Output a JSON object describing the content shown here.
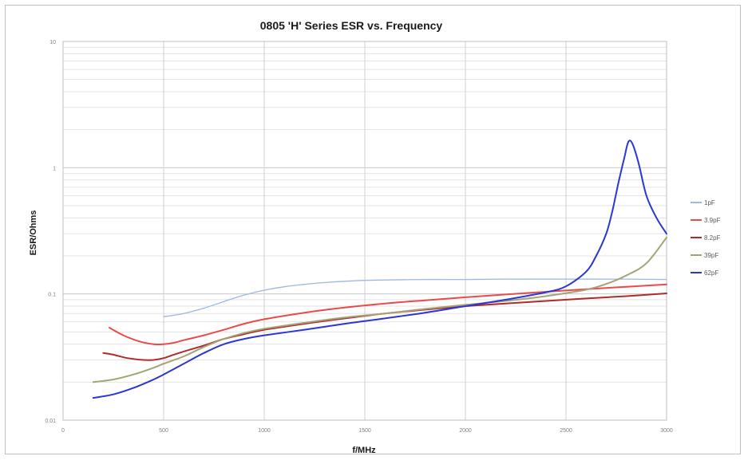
{
  "chart_data": {
    "type": "line",
    "title": "0805 'H' Series ESR vs. Frequency",
    "xlabel": "f/MHz",
    "ylabel": "ESR/Ohms",
    "xlim": [
      0,
      3000
    ],
    "ylim": [
      0.01,
      10
    ],
    "y_scale": "log",
    "grid": true,
    "legend_position": "right",
    "x_ticks": [
      {
        "value": 0,
        "label": "0"
      },
      {
        "value": 500,
        "label": "500"
      },
      {
        "value": 1000,
        "label": "1000"
      },
      {
        "value": 1500,
        "label": "1500"
      },
      {
        "value": 2000,
        "label": "2000"
      },
      {
        "value": 2500,
        "label": "2500"
      },
      {
        "value": 3000,
        "label": "3000"
      }
    ],
    "y_ticks": [
      {
        "value": 0.01,
        "label": "0.01"
      },
      {
        "value": 0.1,
        "label": "0.1"
      },
      {
        "value": 1,
        "label": "1"
      },
      {
        "value": 10,
        "label": "10"
      }
    ],
    "series": [
      {
        "name": "1pF",
        "color": "#9db8dc",
        "x": [
          500,
          600,
          700,
          800,
          900,
          1000,
          1100,
          1200,
          1300,
          1400,
          1500,
          1600,
          1800,
          2000,
          2200,
          2500,
          2800,
          3000
        ],
        "y": [
          0.066,
          0.07,
          0.077,
          0.087,
          0.098,
          0.107,
          0.114,
          0.119,
          0.123,
          0.126,
          0.128,
          0.129,
          0.13,
          0.13,
          0.131,
          0.131,
          0.131,
          0.13
        ]
      },
      {
        "name": "3.9pF",
        "color": "#ea4a4a",
        "x": [
          230,
          300,
          380,
          450,
          500,
          550,
          600,
          700,
          800,
          900,
          1000,
          1200,
          1400,
          1600,
          1800,
          2000,
          2200,
          2400,
          2600,
          2800,
          3000
        ],
        "y": [
          0.054,
          0.047,
          0.042,
          0.04,
          0.04,
          0.041,
          0.043,
          0.047,
          0.052,
          0.058,
          0.063,
          0.071,
          0.078,
          0.084,
          0.089,
          0.094,
          0.099,
          0.104,
          0.109,
          0.114,
          0.119
        ]
      },
      {
        "name": "8.2pF",
        "color": "#b02a2a",
        "x": [
          200,
          250,
          320,
          400,
          450,
          500,
          550,
          600,
          700,
          800,
          900,
          1000,
          1200,
          1400,
          1600,
          1800,
          2000,
          2200,
          2400,
          2600,
          2800,
          3000
        ],
        "y": [
          0.034,
          0.033,
          0.031,
          0.03,
          0.03,
          0.031,
          0.033,
          0.035,
          0.039,
          0.044,
          0.048,
          0.052,
          0.058,
          0.064,
          0.07,
          0.075,
          0.08,
          0.084,
          0.088,
          0.092,
          0.096,
          0.101
        ]
      },
      {
        "name": "39pF",
        "color": "#a3a376",
        "x": [
          150,
          250,
          350,
          450,
          500,
          600,
          700,
          800,
          900,
          1000,
          1200,
          1400,
          1600,
          1800,
          2000,
          2200,
          2400,
          2600,
          2700,
          2800,
          2900,
          3000
        ],
        "y": [
          0.02,
          0.021,
          0.023,
          0.026,
          0.028,
          0.032,
          0.038,
          0.044,
          0.049,
          0.053,
          0.059,
          0.065,
          0.07,
          0.076,
          0.082,
          0.088,
          0.096,
          0.108,
          0.12,
          0.14,
          0.175,
          0.28
        ]
      },
      {
        "name": "62pF",
        "color": "#2a36d6",
        "x": [
          150,
          250,
          350,
          450,
          500,
          600,
          700,
          800,
          900,
          1000,
          1200,
          1400,
          1600,
          1800,
          2000,
          2200,
          2400,
          2500,
          2600,
          2650,
          2700,
          2730,
          2760,
          2790,
          2810,
          2830,
          2860,
          2900,
          2950,
          3000
        ],
        "y": [
          0.015,
          0.016,
          0.018,
          0.021,
          0.023,
          0.028,
          0.034,
          0.04,
          0.044,
          0.047,
          0.052,
          0.058,
          0.064,
          0.071,
          0.08,
          0.09,
          0.103,
          0.115,
          0.15,
          0.2,
          0.3,
          0.45,
          0.75,
          1.2,
          1.6,
          1.55,
          1.1,
          0.6,
          0.4,
          0.3
        ]
      }
    ]
  }
}
